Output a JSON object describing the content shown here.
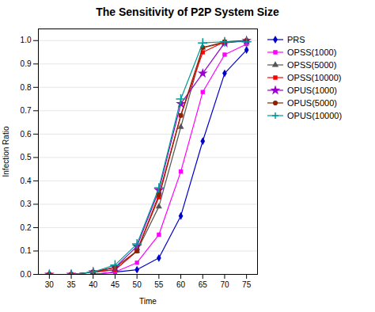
{
  "chart_data": {
    "type": "line",
    "title": "The Sensitivity of P2P System Size",
    "xlabel": "Time",
    "ylabel": "Infection Ratio",
    "xlim": [
      27.5,
      77.5
    ],
    "ylim": [
      0,
      1.05
    ],
    "xticks": [
      30,
      35,
      40,
      45,
      50,
      55,
      60,
      65,
      70,
      75
    ],
    "yticks": [
      {
        "value": 0,
        "label": "0.0"
      },
      0.1,
      0.2,
      0.3,
      0.4,
      0.5,
      0.6,
      0.7,
      0.8,
      0.9,
      {
        "value": 1,
        "label": "1.0"
      }
    ],
    "grid": "y",
    "legend": "right",
    "x": [
      30,
      35,
      40,
      45,
      50,
      55,
      60,
      65,
      70,
      75
    ],
    "series": [
      {
        "name": "PRS",
        "color": "#0000CC",
        "marker": "diamond",
        "values": [
          0.0,
          0.0,
          0.0,
          0.01,
          0.02,
          0.07,
          0.25,
          0.57,
          0.86,
          0.96
        ]
      },
      {
        "name": "OPSS(1000)",
        "color": "#FF00FF",
        "marker": "square",
        "values": [
          0.0,
          0.0,
          0.0,
          0.01,
          0.05,
          0.17,
          0.44,
          0.78,
          0.94,
          0.985
        ]
      },
      {
        "name": "OPSS(5000)",
        "color": "#555555",
        "marker": "triangle",
        "values": [
          0.0,
          0.0,
          0.01,
          0.02,
          0.1,
          0.29,
          0.63,
          0.97,
          0.99,
          1.0
        ]
      },
      {
        "name": "OPSS(10000)",
        "color": "#FF0000",
        "marker": "square",
        "values": [
          0.0,
          0.0,
          0.01,
          0.02,
          0.1,
          0.33,
          0.68,
          0.95,
          0.995,
          1.0
        ]
      },
      {
        "name": "OPUS(1000)",
        "color": "#9900CC",
        "marker": "star",
        "values": [
          0.0,
          0.0,
          0.01,
          0.03,
          0.12,
          0.36,
          0.73,
          0.86,
          0.99,
          1.0
        ]
      },
      {
        "name": "OPUS(5000)",
        "color": "#8B2200",
        "marker": "circle",
        "values": [
          0.0,
          0.0,
          0.01,
          0.03,
          0.1,
          0.34,
          0.68,
          0.97,
          0.995,
          1.0
        ]
      },
      {
        "name": "OPUS(10000)",
        "color": "#009999",
        "marker": "plus",
        "values": [
          0.0,
          0.0,
          0.01,
          0.04,
          0.13,
          0.37,
          0.75,
          0.99,
          0.995,
          0.995
        ]
      }
    ]
  }
}
